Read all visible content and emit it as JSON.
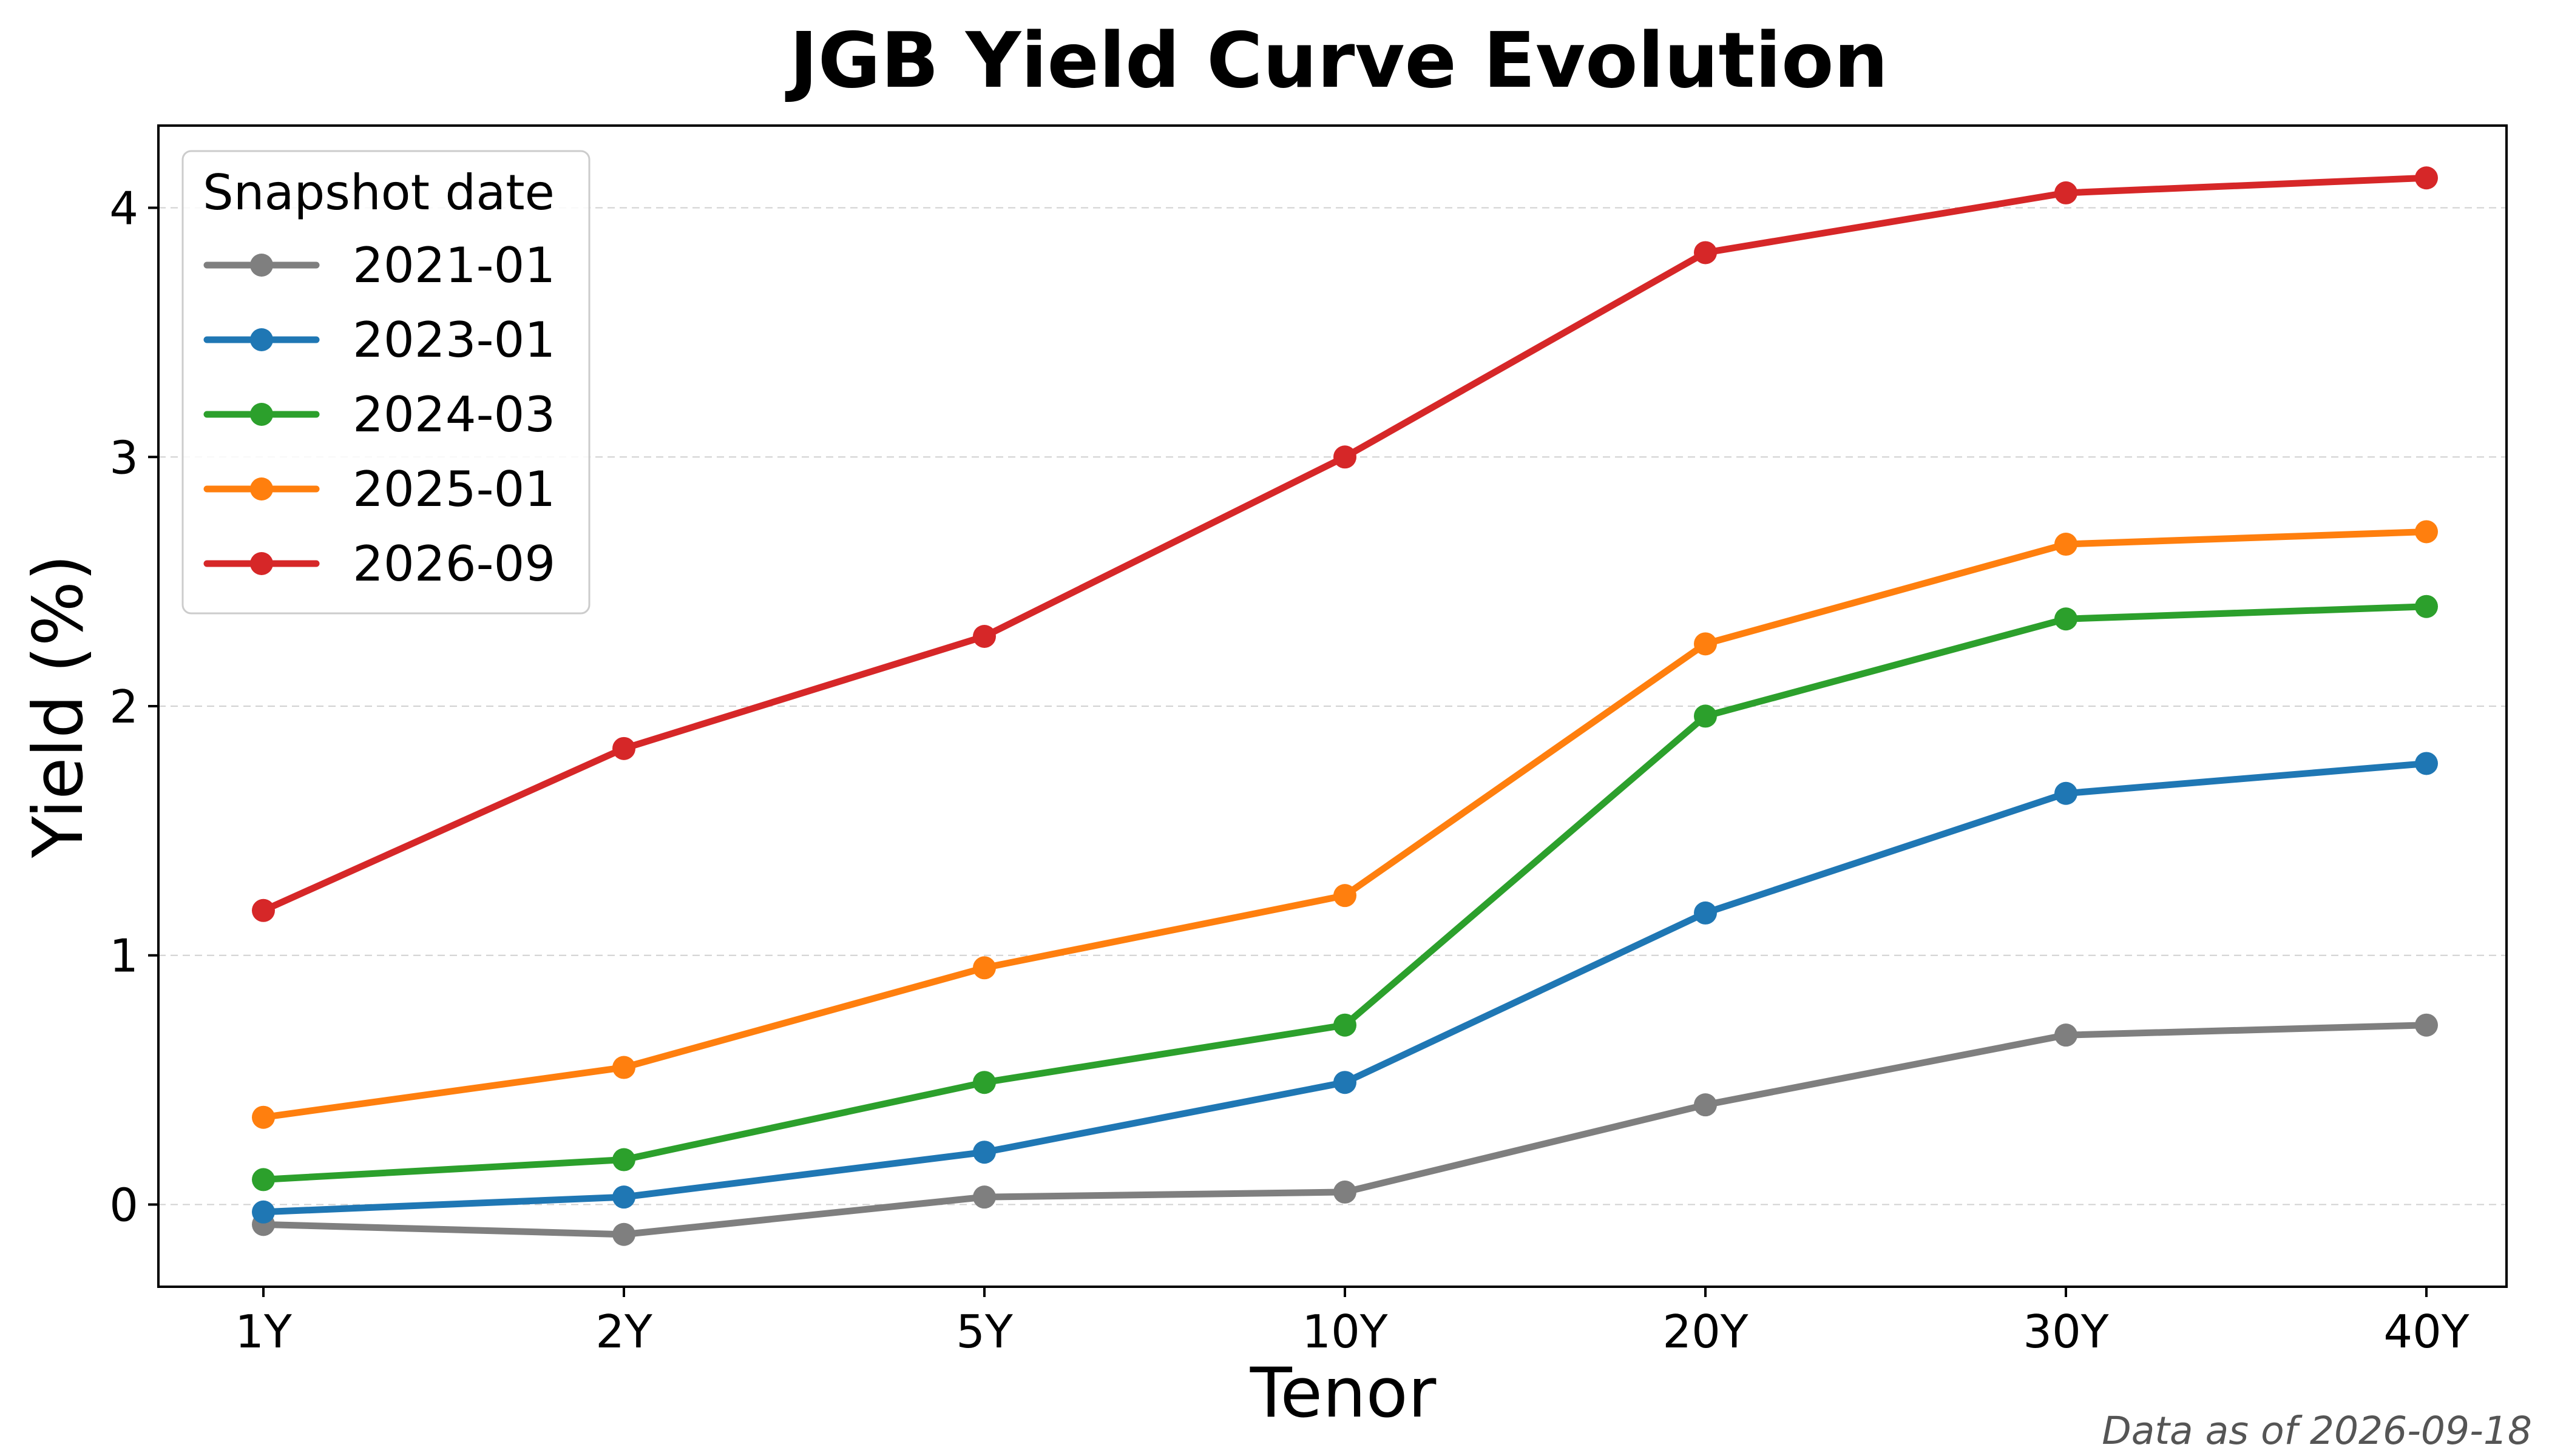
{
  "chart_data": {
    "type": "line",
    "title": "JGB Yield Curve Evolution",
    "xlabel": "Tenor",
    "ylabel": "Yield (%)",
    "categories": [
      "1Y",
      "2Y",
      "5Y",
      "10Y",
      "20Y",
      "30Y",
      "40Y"
    ],
    "ylim": [
      -0.33,
      4.33
    ],
    "yticks": [
      0,
      1,
      2,
      3,
      4
    ],
    "grid": "horizontal dashed",
    "legend": {
      "title": "Snapshot date",
      "placement": "top-left"
    },
    "series": [
      {
        "name": "2021-01",
        "color": "#7f7f7f",
        "values": [
          -0.08,
          -0.12,
          0.03,
          0.05,
          0.4,
          0.68,
          0.72
        ]
      },
      {
        "name": "2023-01",
        "color": "#1f77b4",
        "values": [
          -0.03,
          0.03,
          0.21,
          0.49,
          1.17,
          1.65,
          1.77
        ]
      },
      {
        "name": "2024-03",
        "color": "#2ca02c",
        "values": [
          0.1,
          0.18,
          0.49,
          0.72,
          1.96,
          2.35,
          2.4
        ]
      },
      {
        "name": "2025-01",
        "color": "#ff7f0e",
        "values": [
          0.35,
          0.55,
          0.95,
          1.24,
          2.25,
          2.65,
          2.7
        ]
      },
      {
        "name": "2026-09",
        "color": "#d62728",
        "values": [
          1.18,
          1.83,
          2.28,
          3.0,
          3.82,
          4.06,
          4.12
        ]
      }
    ],
    "annotations": [
      "Data as of 2026-09-18"
    ]
  }
}
